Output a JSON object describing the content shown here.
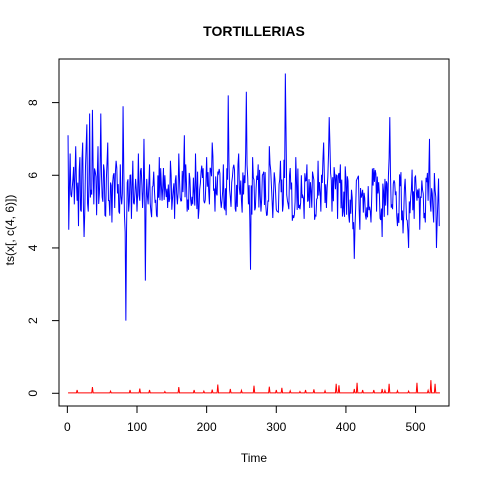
{
  "chart_data": {
    "type": "line",
    "title": "TORTILLERIAS",
    "xlabel": "Time",
    "ylabel": "ts(x[, c(4, 6)])",
    "xlim": [
      -12,
      548
    ],
    "ylim": [
      -0.35,
      9.2
    ],
    "x_ticks": [
      0,
      100,
      200,
      300,
      400,
      500
    ],
    "y_ticks": [
      0,
      2,
      4,
      6,
      8
    ],
    "grid": false,
    "n": 535,
    "series": [
      {
        "color": "#0000ff",
        "anchors": [
          [
            1,
            7.1
          ],
          [
            2,
            4.5
          ],
          [
            4,
            6.6
          ],
          [
            6,
            5.4
          ],
          [
            8,
            5.9
          ],
          [
            10,
            5.2
          ],
          [
            12,
            6.8
          ],
          [
            14,
            5.3
          ],
          [
            16,
            4.6
          ],
          [
            18,
            6.5
          ],
          [
            20,
            5.0
          ],
          [
            22,
            6.9
          ],
          [
            24,
            4.3
          ],
          [
            26,
            6.2
          ],
          [
            28,
            7.4
          ],
          [
            30,
            5.0
          ],
          [
            32,
            7.7
          ],
          [
            34,
            5.6
          ],
          [
            36,
            7.8
          ],
          [
            38,
            5.2
          ],
          [
            40,
            6.1
          ],
          [
            42,
            4.9
          ],
          [
            44,
            6.8
          ],
          [
            46,
            5.5
          ],
          [
            48,
            7.7
          ],
          [
            50,
            5.4
          ],
          [
            52,
            6.3
          ],
          [
            54,
            4.9
          ],
          [
            56,
            5.9
          ],
          [
            58,
            6.9
          ],
          [
            60,
            5.3
          ],
          [
            62,
            5.8
          ],
          [
            64,
            4.7
          ],
          [
            66,
            6.0
          ],
          [
            68,
            5.1
          ],
          [
            70,
            6.4
          ],
          [
            72,
            5.5
          ],
          [
            74,
            5.0
          ],
          [
            76,
            6.3
          ],
          [
            78,
            5.2
          ],
          [
            80,
            7.9
          ],
          [
            82,
            4.9
          ],
          [
            84,
            2.0
          ],
          [
            86,
            5.8
          ],
          [
            88,
            5.0
          ],
          [
            90,
            6.0
          ],
          [
            92,
            4.8
          ],
          [
            94,
            6.4
          ],
          [
            96,
            5.2
          ],
          [
            98,
            5.9
          ],
          [
            100,
            5.0
          ],
          [
            102,
            6.6
          ],
          [
            104,
            5.3
          ],
          [
            106,
            6.2
          ],
          [
            108,
            5.1
          ],
          [
            110,
            7.0
          ],
          [
            112,
            3.1
          ],
          [
            114,
            5.9
          ],
          [
            116,
            5.2
          ],
          [
            118,
            6.3
          ],
          [
            120,
            5.0
          ],
          [
            124,
            6.1
          ],
          [
            128,
            4.9
          ],
          [
            132,
            6.5
          ],
          [
            136,
            5.3
          ],
          [
            140,
            6.0
          ],
          [
            144,
            5.1
          ],
          [
            148,
            6.4
          ],
          [
            152,
            5.6
          ],
          [
            154,
            4.8
          ],
          [
            156,
            6.0
          ],
          [
            158,
            5.2
          ],
          [
            160,
            6.6
          ],
          [
            164,
            5.3
          ],
          [
            168,
            7.1
          ],
          [
            172,
            5.0
          ],
          [
            176,
            5.9
          ],
          [
            180,
            5.2
          ],
          [
            184,
            6.6
          ],
          [
            188,
            4.8
          ],
          [
            192,
            6.1
          ],
          [
            196,
            5.3
          ],
          [
            200,
            6.5
          ],
          [
            204,
            5.2
          ],
          [
            208,
            6.9
          ],
          [
            212,
            5.0
          ],
          [
            216,
            6.1
          ],
          [
            220,
            5.3
          ],
          [
            224,
            6.3
          ],
          [
            228,
            4.9
          ],
          [
            231,
            8.2
          ],
          [
            234,
            5.4
          ],
          [
            238,
            6.2
          ],
          [
            242,
            5.0
          ],
          [
            246,
            6.6
          ],
          [
            250,
            5.3
          ],
          [
            254,
            6.0
          ],
          [
            257,
            8.3
          ],
          [
            260,
            5.2
          ],
          [
            263,
            3.4
          ],
          [
            266,
            6.5
          ],
          [
            270,
            5.1
          ],
          [
            274,
            6.3
          ],
          [
            278,
            5.0
          ],
          [
            282,
            6.1
          ],
          [
            286,
            4.9
          ],
          [
            290,
            6.8
          ],
          [
            294,
            5.3
          ],
          [
            298,
            5.9
          ],
          [
            302,
            5.0
          ],
          [
            306,
            6.4
          ],
          [
            310,
            5.2
          ],
          [
            313,
            8.8
          ],
          [
            316,
            5.3
          ],
          [
            320,
            6.2
          ],
          [
            324,
            4.9
          ],
          [
            328,
            6.5
          ],
          [
            332,
            5.1
          ],
          [
            336,
            6.0
          ],
          [
            340,
            4.8
          ],
          [
            344,
            6.3
          ],
          [
            348,
            5.1
          ],
          [
            352,
            6.1
          ],
          [
            356,
            4.9
          ],
          [
            360,
            6.4
          ],
          [
            364,
            5.0
          ],
          [
            368,
            6.9
          ],
          [
            372,
            5.1
          ],
          [
            376,
            7.6
          ],
          [
            380,
            5.0
          ],
          [
            384,
            6.0
          ],
          [
            388,
            4.8
          ],
          [
            392,
            6.3
          ],
          [
            396,
            5.0
          ],
          [
            400,
            5.9
          ],
          [
            404,
            4.9
          ],
          [
            408,
            5.6
          ],
          [
            412,
            3.7
          ],
          [
            416,
            5.9
          ],
          [
            420,
            4.5
          ],
          [
            424,
            5.6
          ],
          [
            428,
            4.9
          ],
          [
            432,
            5.7
          ],
          [
            436,
            4.7
          ],
          [
            440,
            6.2
          ],
          [
            444,
            5.0
          ],
          [
            448,
            5.5
          ],
          [
            452,
            4.3
          ],
          [
            456,
            5.9
          ],
          [
            460,
            4.9
          ],
          [
            463,
            7.6
          ],
          [
            466,
            5.2
          ],
          [
            470,
            5.8
          ],
          [
            474,
            4.6
          ],
          [
            478,
            5.7
          ],
          [
            482,
            4.4
          ],
          [
            486,
            5.4
          ],
          [
            490,
            4.0
          ],
          [
            494,
            5.6
          ],
          [
            498,
            4.8
          ],
          [
            502,
            5.3
          ],
          [
            506,
            4.5
          ],
          [
            510,
            5.6
          ],
          [
            514,
            4.7
          ],
          [
            518,
            5.3
          ],
          [
            520,
            7.0
          ],
          [
            522,
            5.0
          ],
          [
            524,
            5.5
          ],
          [
            526,
            4.7
          ],
          [
            528,
            5.6
          ],
          [
            530,
            4.0
          ],
          [
            532,
            5.3
          ],
          [
            534,
            4.6
          ]
        ]
      },
      {
        "color": "#ff0000",
        "baseline": 0.01,
        "spikes": [
          [
            14,
            0.09
          ],
          [
            36,
            0.17
          ],
          [
            62,
            0.06
          ],
          [
            90,
            0.09
          ],
          [
            104,
            0.13
          ],
          [
            118,
            0.09
          ],
          [
            140,
            0.05
          ],
          [
            160,
            0.17
          ],
          [
            182,
            0.09
          ],
          [
            196,
            0.06
          ],
          [
            208,
            0.1
          ],
          [
            216,
            0.24
          ],
          [
            234,
            0.12
          ],
          [
            250,
            0.08
          ],
          [
            268,
            0.21
          ],
          [
            290,
            0.18
          ],
          [
            300,
            0.09
          ],
          [
            308,
            0.15
          ],
          [
            320,
            0.07
          ],
          [
            334,
            0.05
          ],
          [
            342,
            0.09
          ],
          [
            354,
            0.11
          ],
          [
            370,
            0.07
          ],
          [
            386,
            0.26
          ],
          [
            390,
            0.22
          ],
          [
            412,
            0.12
          ],
          [
            416,
            0.29
          ],
          [
            424,
            0.09
          ],
          [
            440,
            0.09
          ],
          [
            452,
            0.12
          ],
          [
            456,
            0.08
          ],
          [
            462,
            0.26
          ],
          [
            474,
            0.07
          ],
          [
            490,
            0.06
          ],
          [
            502,
            0.29
          ],
          [
            518,
            0.08
          ],
          [
            522,
            0.36
          ],
          [
            528,
            0.26
          ]
        ]
      }
    ]
  }
}
